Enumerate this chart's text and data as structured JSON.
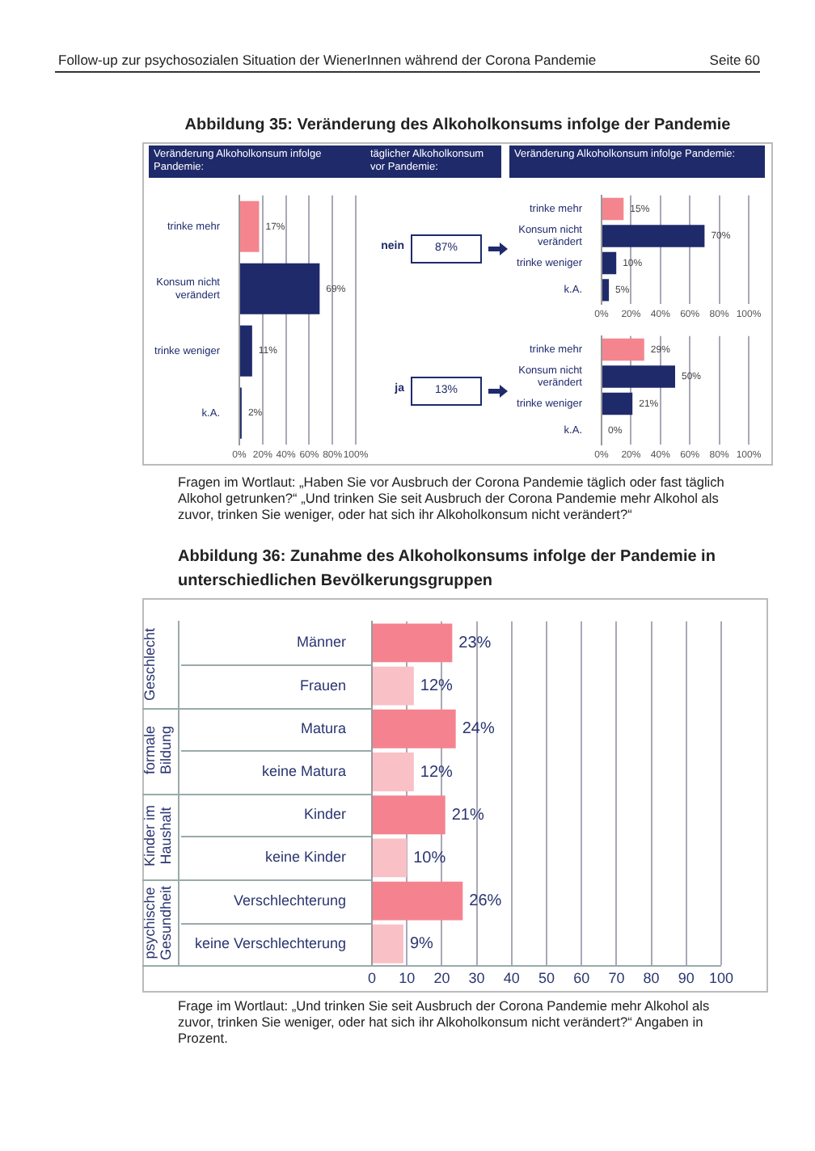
{
  "chart_data": [
    {
      "type": "bar",
      "orientation": "horizontal",
      "title": "Abbildung 35: Veränderung des Alkoholkonsums infolge der Pandemie",
      "subtitle": "Veränderung Alkoholkonsum infolge Pandemie:",
      "categories": [
        "trinke mehr",
        "Konsum nicht verändert",
        "trinke weniger",
        "k.A."
      ],
      "values": [
        17,
        69,
        11,
        2
      ],
      "colors": [
        "#f4858f",
        "#1f2a6b",
        "#1f2a6b",
        "#1f2a6b"
      ],
      "value_labels": [
        "17%",
        "69%",
        "11%",
        "2%"
      ],
      "xlim": [
        0,
        100
      ],
      "xticks": [
        {
          "value": 0,
          "label": "0%"
        },
        {
          "value": 20,
          "label": "20%"
        },
        {
          "value": 40,
          "label": "40%"
        },
        {
          "value": 60,
          "label": "60%"
        },
        {
          "value": 80,
          "label": "80%"
        },
        {
          "value": 100,
          "label": "100%"
        }
      ],
      "grid": "x",
      "annotations": [
        "Follow-up zur psychosozialen Situation der WienerInnen während der Corona Pandemie",
        "Seite 60"
      ]
    },
    {
      "type": "other",
      "subtitle": "täglicher Alkoholkonsum vor Pandemie:",
      "categories": [
        "nein",
        "ja"
      ],
      "values": [
        87,
        13
      ],
      "value_labels": [
        "87%",
        "13%"
      ]
    },
    {
      "type": "bar",
      "orientation": "horizontal",
      "subtitle": "Veränderung Alkoholkonsum infolge Pandemie:",
      "categories": [
        "trinke mehr",
        "Konsum nicht verändert",
        "trinke weniger",
        "k.A."
      ],
      "values": [
        15,
        70,
        10,
        5
      ],
      "colors": [
        "#f4858f",
        "#1f2a6b",
        "#1f2a6b",
        "#1f2a6b"
      ],
      "value_labels": [
        "15%",
        "70%",
        "10%",
        "5%"
      ],
      "xlim": [
        0,
        100
      ],
      "xticks": [
        {
          "value": 0,
          "label": "0%"
        },
        {
          "value": 20,
          "label": "20%"
        },
        {
          "value": 40,
          "label": "40%"
        },
        {
          "value": 60,
          "label": "60%"
        },
        {
          "value": 80,
          "label": "80%"
        },
        {
          "value": 100,
          "label": "100%"
        }
      ],
      "grid": "x"
    },
    {
      "type": "bar",
      "orientation": "horizontal",
      "categories": [
        "trinke mehr",
        "Konsum nicht verändert",
        "trinke weniger",
        "k.A."
      ],
      "values": [
        29,
        50,
        21,
        0
      ],
      "colors": [
        "#f4858f",
        "#1f2a6b",
        "#1f2a6b",
        "#1f2a6b"
      ],
      "value_labels": [
        "29%",
        "50%",
        "21%",
        "0%"
      ],
      "xlim": [
        0,
        100
      ],
      "xticks": [
        {
          "value": 0,
          "label": "0%"
        },
        {
          "value": 20,
          "label": "20%"
        },
        {
          "value": 40,
          "label": "40%"
        },
        {
          "value": 60,
          "label": "60%"
        },
        {
          "value": 80,
          "label": "80%"
        },
        {
          "value": 100,
          "label": "100%"
        }
      ],
      "grid": "x",
      "annotations": [
        "Fragen im Wortlaut: „Haben Sie vor Ausbruch der Corona Pandemie täglich oder fast täglich Alkohol getrunken?“ „Und trinken Sie seit Ausbruch der Corona Pandemie mehr Alkohol als zuvor, trinken Sie weniger, oder hat sich ihr Alkoholkonsum nicht verändert?“"
      ]
    },
    {
      "type": "bar",
      "orientation": "horizontal",
      "title": "Abbildung 36: Zunahme des Alkoholkonsums infolge der Pandemie in unterschiedlichen Bevölkerungsgruppen",
      "categories": [
        "Männer",
        "Frauen",
        "Matura",
        "keine Matura",
        "Kinder",
        "keine Kinder",
        "Verschlechterung",
        "keine Verschlechterung"
      ],
      "values": [
        23,
        12,
        24,
        12,
        21,
        10,
        26,
        9
      ],
      "colors": [
        "#f5838f",
        "#f9c0c6",
        "#f5838f",
        "#f9c0c6",
        "#f5838f",
        "#f9c0c6",
        "#f5838f",
        "#f9c0c6"
      ],
      "value_labels": [
        "23%",
        "12%",
        "24%",
        "12%",
        "21%",
        "10%",
        "26%",
        "9%"
      ],
      "xlim": [
        0,
        100
      ],
      "xticks": [
        0,
        10,
        20,
        30,
        40,
        50,
        60,
        70,
        80,
        90,
        100
      ],
      "grid": "x",
      "annotations": [
        "Geschlecht",
        "formale Bildung",
        "Kinder im Haushalt",
        "psychische Gesundheit",
        "Frage im Wortlaut: „Und trinken Sie seit Ausbruch der Corona Pandemie mehr Alkohol als zuvor, trinken Sie weniger, oder hat sich ihr Alkoholkonsum nicht verändert?“ Angaben in Prozent."
      ]
    }
  ]
}
